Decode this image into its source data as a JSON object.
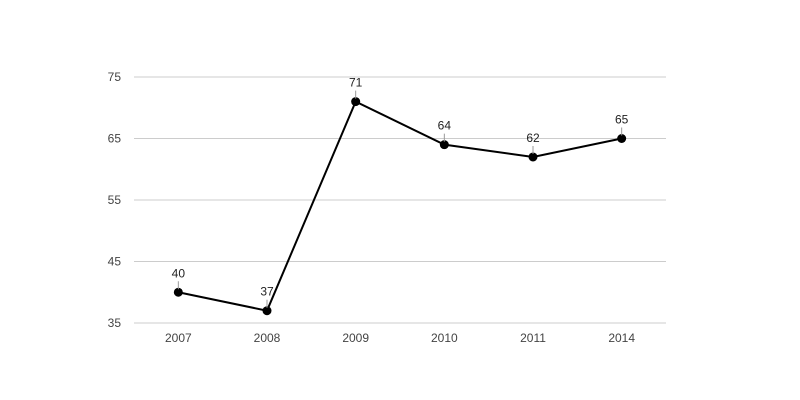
{
  "chart_data": {
    "type": "line",
    "categories": [
      "2007",
      "2008",
      "2009",
      "2010",
      "2011",
      "2014"
    ],
    "values": [
      40,
      37,
      71,
      64,
      62,
      65
    ],
    "data_labels": [
      "40",
      "37",
      "71",
      "64",
      "62",
      "65"
    ],
    "y_ticks": [
      "35",
      "45",
      "55",
      "65",
      "75"
    ],
    "ylim": [
      35,
      75
    ],
    "grid": true,
    "legend": "none",
    "colors": {
      "line": "#000000",
      "grid": "#cccccc"
    }
  }
}
